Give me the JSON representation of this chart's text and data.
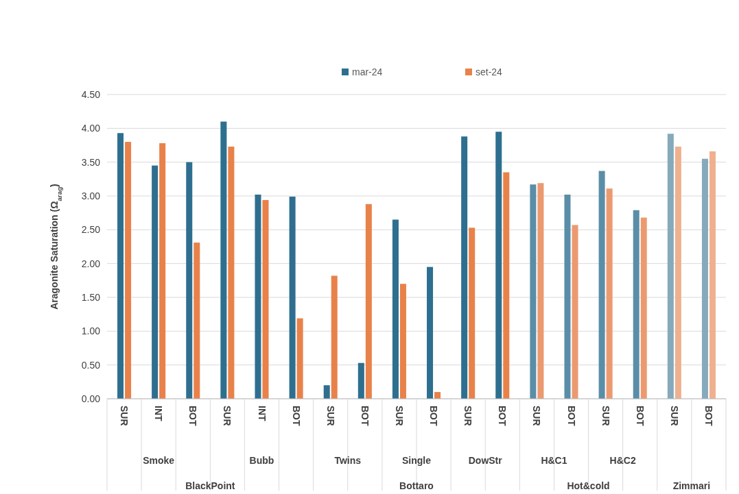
{
  "chart_data": {
    "type": "bar",
    "ylabel": "Aragonite Saturation (Ω$_{arag}$)",
    "categories": [
      "SUR",
      "INT",
      "BOT",
      "SUR",
      "INT",
      "BOT",
      "SUR",
      "BOT",
      "SUR",
      "BOT",
      "SUR",
      "BOT",
      "SUR",
      "BOT",
      "SUR",
      "BOT",
      "SUR",
      "BOT"
    ],
    "annotations": [
      "Smoke",
      "Bubb",
      "Twins",
      "Single",
      "DowStr",
      "H&C1",
      "H&C2",
      "BlackPoint",
      "Bottaro",
      "Hot&cold",
      "Zimmari"
    ],
    "series": [
      {
        "name": "mar-24",
        "color": "#2e6f8f",
        "colors": [
          "#2e6f8f",
          "#2e6f8f",
          "#2e6f8f",
          "#2e6f8f",
          "#2e6f8f",
          "#2e6f8f",
          "#2e6f8f",
          "#2e6f8f",
          "#2e6f8f",
          "#2e6f8f",
          "#2e6f8f",
          "#2e6f8f",
          "#5a8ea8",
          "#5a8ea8",
          "#5a8ea8",
          "#5a8ea8",
          "#86a9bc",
          "#86a9bc"
        ],
        "values": [
          3.93,
          3.45,
          3.5,
          4.1,
          3.02,
          2.99,
          0.2,
          0.53,
          2.65,
          1.95,
          3.88,
          3.95,
          3.17,
          3.02,
          3.37,
          2.79,
          3.92,
          3.55
        ]
      },
      {
        "name": "set-24",
        "color": "#e8824a",
        "colors": [
          "#e8824a",
          "#e8824a",
          "#e8824a",
          "#e8824a",
          "#e8824a",
          "#e8824a",
          "#e8824a",
          "#e8824a",
          "#e8824a",
          "#e8824a",
          "#e8824a",
          "#e8824a",
          "#eb9a70",
          "#eb9a70",
          "#eb9a70",
          "#eb9a70",
          "#efb08f",
          "#efb08f"
        ],
        "values": [
          3.8,
          3.78,
          2.31,
          3.73,
          2.94,
          1.19,
          1.82,
          2.88,
          1.7,
          0.1,
          2.53,
          3.35,
          3.19,
          2.57,
          3.11,
          2.68,
          3.73,
          3.66
        ]
      }
    ],
    "ylim": [
      0,
      4.5
    ],
    "yticks": [
      {
        "value": 0,
        "label": "0.00"
      },
      {
        "value": 0.5,
        "label": "0.50"
      },
      {
        "value": 1,
        "label": "1.00"
      },
      {
        "value": 1.5,
        "label": "1.50"
      },
      {
        "value": 2,
        "label": "2.00"
      },
      {
        "value": 2.5,
        "label": "2.50"
      },
      {
        "value": 3,
        "label": "3.00"
      },
      {
        "value": 3.5,
        "label": "3.50"
      },
      {
        "value": 4,
        "label": "4.00"
      },
      {
        "value": 4.5,
        "label": "4.50"
      }
    ],
    "grid": "y",
    "legend": "top"
  }
}
